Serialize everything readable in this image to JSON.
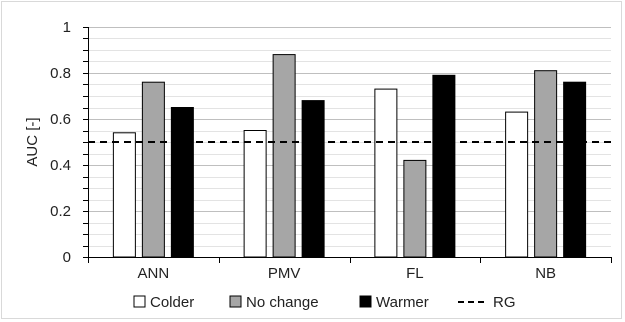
{
  "chart_data": {
    "type": "bar",
    "title": "",
    "xlabel": "",
    "ylabel": "AUC [-]",
    "ylim": [
      0,
      1
    ],
    "yticks": [
      0,
      0.2,
      0.4,
      0.6,
      0.8,
      1
    ],
    "ytick_labels": [
      "0",
      "0.2",
      "0.4",
      "0.6",
      "0.8",
      "1"
    ],
    "minor_grid_step": 0.05,
    "grid": true,
    "categories": [
      "ANN",
      "PMV",
      "FL",
      "NB"
    ],
    "series": [
      {
        "name": "Colder",
        "values": [
          0.54,
          0.55,
          0.73,
          0.63
        ],
        "color": "#ffffff"
      },
      {
        "name": "No change",
        "values": [
          0.76,
          0.88,
          0.42,
          0.81
        ],
        "color": "#a6a6a6"
      },
      {
        "name": "Warmer",
        "values": [
          0.65,
          0.68,
          0.79,
          0.76
        ],
        "color": "#000000"
      }
    ],
    "reference_line": {
      "name": "RG",
      "value": 0.5,
      "style": "dashed"
    },
    "legend": {
      "position": "bottom"
    }
  }
}
